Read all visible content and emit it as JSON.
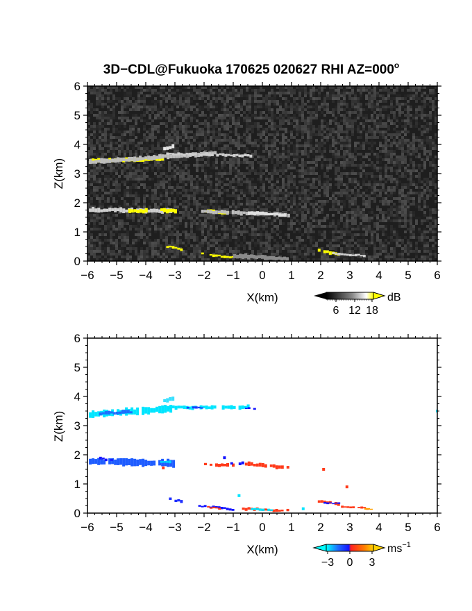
{
  "chart_data": [
    {
      "type": "heatmap",
      "panel": "reflectivity",
      "title": "3D−CDL@Fukuoka 170625 020627 RHI AZ=000",
      "title_superscript": "o",
      "xlabel": "X(km)",
      "ylabel": "Z(km)",
      "xlim": [
        -6,
        6
      ],
      "ylim": [
        0,
        6
      ],
      "x_ticks": [
        "−6",
        "−5",
        "−4",
        "−3",
        "−2",
        "−1",
        "0",
        "1",
        "2",
        "3",
        "4",
        "5",
        "6"
      ],
      "y_ticks": [
        "0",
        "1",
        "2",
        "3",
        "4",
        "5",
        "6"
      ],
      "background": "noise (gray)",
      "colorbar": {
        "unit": "dB",
        "ticks": [
          "6",
          "12",
          "18"
        ],
        "colors": [
          "#000000",
          "#ffffff",
          "#ffff00"
        ]
      },
      "layers": [
        {
          "x_start": -5.9,
          "x_end": -1.5,
          "z": 3.45,
          "z_end": 3.7,
          "peak": "yellow near x=-5.9 to -3.4"
        },
        {
          "x_start": -3.4,
          "x_end": -3.1,
          "z": 3.9,
          "peak": "white"
        },
        {
          "x_start": -5.9,
          "x_end": 1.0,
          "z": 1.75,
          "z_end": 1.6,
          "peak": "yellow near x=-4.5 to -3.0, -2.0 to -1.2"
        },
        {
          "x_start": -3.2,
          "x_end": 0.9,
          "z": 0.45,
          "z_end": 0.1,
          "peak": "yellow near x=-2.0 to -1.0"
        },
        {
          "x_start": 1.9,
          "x_end": 3.5,
          "z": 0.4,
          "z_end": 0.2,
          "peak": "yellow near x=1.9 to 2.6"
        }
      ]
    },
    {
      "type": "heatmap",
      "panel": "doppler_velocity",
      "xlabel": "X(km)",
      "ylabel": "Z(km)",
      "xlim": [
        -6,
        6
      ],
      "ylim": [
        0,
        6
      ],
      "x_ticks": [
        "−6",
        "−5",
        "−4",
        "−3",
        "−2",
        "−1",
        "0",
        "1",
        "2",
        "3",
        "4",
        "5",
        "6"
      ],
      "y_ticks": [
        "0",
        "1",
        "2",
        "3",
        "4",
        "5",
        "6"
      ],
      "colorbar": {
        "unit": "ms",
        "unit_exponent": "−1",
        "ticks": [
          "−3",
          "0",
          "3"
        ],
        "colors": [
          "#00ffff",
          "#1e6cff",
          "#1414ff",
          "#ff2020",
          "#ff7a00",
          "#ffd000"
        ]
      },
      "layers": [
        {
          "x_start": -5.9,
          "x_end": -0.4,
          "z": 3.45,
          "z_end": 3.65,
          "velocity": "−3 to −2 (cyan)"
        },
        {
          "x_start": -5.9,
          "x_end": -3.0,
          "z": 1.75,
          "velocity": "−2 to −1 (blue)"
        },
        {
          "x_start": -2.0,
          "x_end": 0.9,
          "z": 1.65,
          "velocity": "1 to 2 (red)"
        },
        {
          "x_start": -3.3,
          "x_end": 0.9,
          "z": 0.45,
          "z_end": 0.08,
          "velocity": "mixed −2 to 2"
        },
        {
          "x_start": 1.9,
          "x_end": 3.6,
          "z": 0.4,
          "z_end": 0.15,
          "velocity": "0 to 2 (red)"
        }
      ]
    }
  ]
}
